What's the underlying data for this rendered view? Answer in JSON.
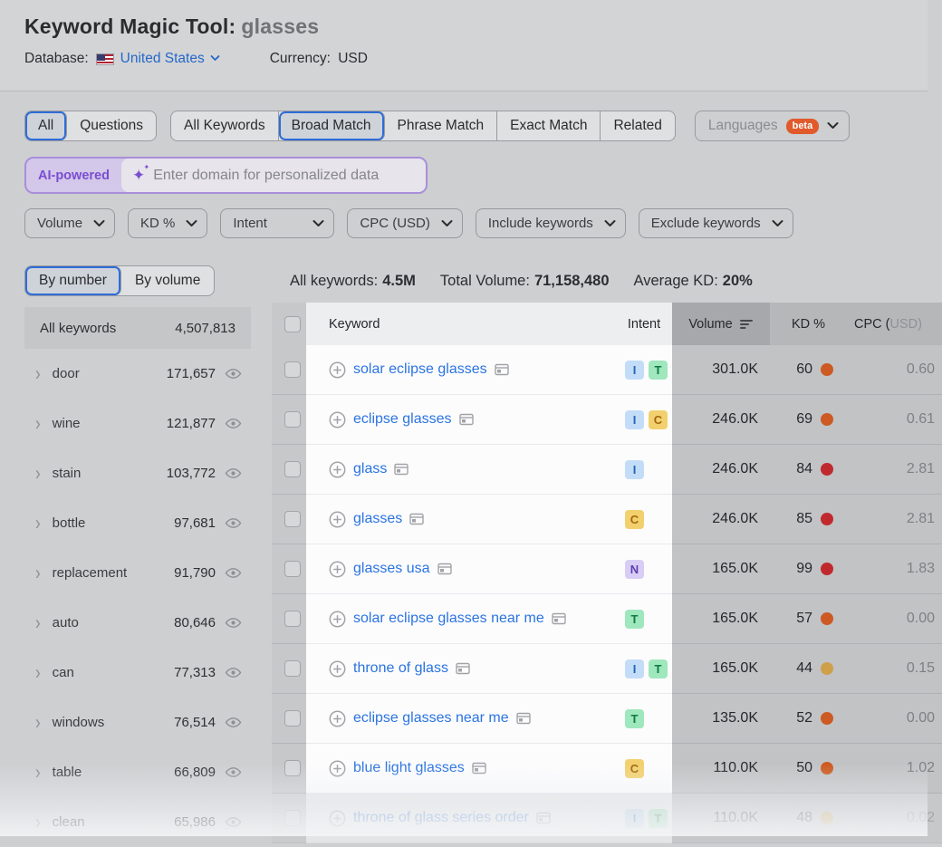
{
  "header": {
    "title": "Keyword Magic Tool:",
    "query": "glasses",
    "database_label": "Database:",
    "database_value": "United States",
    "currency_label": "Currency:",
    "currency_value": "USD"
  },
  "match_tabs": {
    "group1": [
      {
        "label": "All",
        "selected": true
      },
      {
        "label": "Questions",
        "selected": false
      }
    ],
    "group2": [
      {
        "label": "All Keywords",
        "selected": false
      },
      {
        "label": "Broad Match",
        "selected": true
      },
      {
        "label": "Phrase Match",
        "selected": false
      },
      {
        "label": "Exact Match",
        "selected": false
      },
      {
        "label": "Related",
        "selected": false
      }
    ],
    "languages_label": "Languages",
    "languages_badge": "beta"
  },
  "ai_bar": {
    "badge": "AI-powered",
    "placeholder": "Enter domain for personalized data",
    "input_value": ""
  },
  "filters": [
    "Volume",
    "KD %",
    "Intent",
    "CPC (USD)",
    "Include keywords",
    "Exclude keywords"
  ],
  "sidebar": {
    "tabs": [
      {
        "label": "By number",
        "selected": true
      },
      {
        "label": "By volume",
        "selected": false
      }
    ],
    "all_row": {
      "label": "All keywords",
      "value": "4,507,813"
    },
    "groups": [
      {
        "label": "door",
        "value": "171,657"
      },
      {
        "label": "wine",
        "value": "121,877"
      },
      {
        "label": "stain",
        "value": "103,772"
      },
      {
        "label": "bottle",
        "value": "97,681"
      },
      {
        "label": "replacement",
        "value": "91,790"
      },
      {
        "label": "auto",
        "value": "80,646"
      },
      {
        "label": "can",
        "value": "77,313"
      },
      {
        "label": "windows",
        "value": "76,514"
      },
      {
        "label": "table",
        "value": "66,809"
      },
      {
        "label": "clean",
        "value": "65,986"
      }
    ]
  },
  "summary": {
    "all_keywords_label": "All keywords:",
    "all_keywords_value": "4.5M",
    "total_volume_label": "Total Volume:",
    "total_volume_value": "71,158,480",
    "average_kd_label": "Average KD:",
    "average_kd_value": "20%"
  },
  "table": {
    "columns": {
      "keyword": "Keyword",
      "intent": "Intent",
      "volume": "Volume",
      "kd": "KD %",
      "cpc_main": "CPC (",
      "cpc_unit": "USD)"
    },
    "sorted_by": "Volume",
    "sort_direction": "desc",
    "rows": [
      {
        "keyword": "solar eclipse glasses",
        "intents": [
          "I",
          "T"
        ],
        "volume": "301.0K",
        "kd": "60",
        "kd_level": "orange",
        "cpc": "0.60",
        "faded": false
      },
      {
        "keyword": "eclipse glasses",
        "intents": [
          "I",
          "C"
        ],
        "volume": "246.0K",
        "kd": "69",
        "kd_level": "orange",
        "cpc": "0.61",
        "faded": false
      },
      {
        "keyword": "glass",
        "intents": [
          "I"
        ],
        "volume": "246.0K",
        "kd": "84",
        "kd_level": "red",
        "cpc": "2.81",
        "faded": false
      },
      {
        "keyword": "glasses",
        "intents": [
          "C"
        ],
        "volume": "246.0K",
        "kd": "85",
        "kd_level": "red",
        "cpc": "2.81",
        "faded": false
      },
      {
        "keyword": "glasses usa",
        "intents": [
          "N"
        ],
        "volume": "165.0K",
        "kd": "99",
        "kd_level": "red",
        "cpc": "1.83",
        "faded": false
      },
      {
        "keyword": "solar eclipse glasses near me",
        "intents": [
          "T"
        ],
        "volume": "165.0K",
        "kd": "57",
        "kd_level": "orange",
        "cpc": "0.00",
        "faded": false
      },
      {
        "keyword": "throne of glass",
        "intents": [
          "I",
          "T"
        ],
        "volume": "165.0K",
        "kd": "44",
        "kd_level": "amber",
        "cpc": "0.15",
        "faded": false
      },
      {
        "keyword": "eclipse glasses near me",
        "intents": [
          "T"
        ],
        "volume": "135.0K",
        "kd": "52",
        "kd_level": "orange",
        "cpc": "0.00",
        "faded": false
      },
      {
        "keyword": "blue light glasses",
        "intents": [
          "C"
        ],
        "volume": "110.0K",
        "kd": "50",
        "kd_level": "orange",
        "cpc": "1.02",
        "faded": false
      },
      {
        "keyword": "throne of glass series order",
        "intents": [
          "I",
          "T"
        ],
        "volume": "110.0K",
        "kd": "48",
        "kd_level": "amber",
        "cpc": "0.02",
        "faded": true
      }
    ]
  },
  "palette": {
    "accent_blue": "#2e6cd6",
    "link_blue": "#2b74e0",
    "ai_purple": "#7a4ecf",
    "beta_orange": "#e05a2b",
    "kd_orange": "#cc5a22",
    "kd_red": "#c02a2e",
    "kd_amber": "#cfa04a",
    "intent_I_bg": "#c3ddf8",
    "intent_I_fg": "#2463b5",
    "intent_T_bg": "#9fe7bd",
    "intent_T_fg": "#0f7a43",
    "intent_C_bg": "#f3d06e",
    "intent_C_fg": "#a2690c",
    "intent_N_bg": "#d8cdf4",
    "intent_N_fg": "#5d3fb0"
  }
}
